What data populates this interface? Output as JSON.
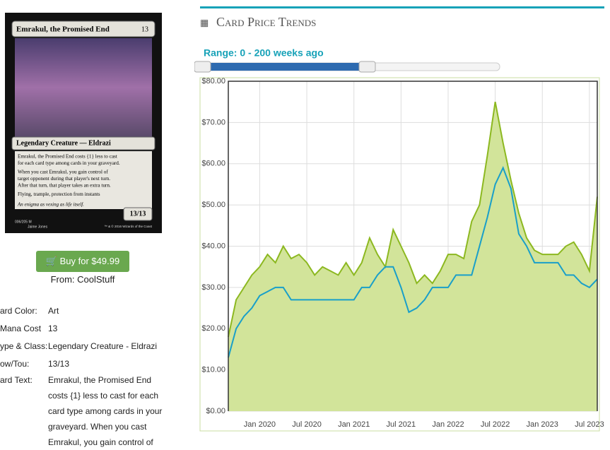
{
  "card": {
    "name": "Emrakul, the Promised End",
    "mana": "13",
    "type_line": "Legendary Creature — Eldrazi",
    "rules": [
      "Emrakul, the Promised End costs {1} less to cast",
      "for each card type among cards in your graveyard.",
      "When you cast Emrakul, you gain control of",
      "target opponent during that player's next turn.",
      "After that turn, that player takes an extra turn.",
      "Flying, trample, protection from instants"
    ],
    "flavor": "An enigma as vexing as life itself.",
    "pt": "13/13",
    "collector": "006/205 M",
    "artist": "Jaime Jones",
    "copyright": "™ & © 2016 Wizards of the Coast"
  },
  "buy": {
    "button": "Buy for $49.99",
    "source": "From: CoolStuff"
  },
  "details": [
    {
      "label": "ard Color:",
      "value": "Art"
    },
    {
      "label": "Mana Cost",
      "value": "13"
    },
    {
      "label": "ype & Class:",
      "value": "Legendary Creature - Eldrazi"
    },
    {
      "label": "ow/Tou:",
      "value": "13/13"
    },
    {
      "label": "ard Text:",
      "value": "Emrakul, the Promised End costs {1} less to cast for each card type among cards in your graveyard. When you cast Emrakul, you gain control of"
    }
  ],
  "chart_data": {
    "type": "line",
    "title": "Card Price Trends",
    "range_label": "Range: 0 - 200 weeks ago",
    "x": [
      "2019-09",
      "2019-10",
      "2019-11",
      "2019-12",
      "2020-01",
      "2020-02",
      "2020-03",
      "2020-04",
      "2020-05",
      "2020-06",
      "2020-07",
      "2020-08",
      "2020-09",
      "2020-10",
      "2020-11",
      "2020-12",
      "2021-01",
      "2021-02",
      "2021-03",
      "2021-04",
      "2021-05",
      "2021-06",
      "2021-07",
      "2021-08",
      "2021-09",
      "2021-10",
      "2021-11",
      "2021-12",
      "2022-01",
      "2022-02",
      "2022-03",
      "2022-04",
      "2022-05",
      "2022-06",
      "2022-07",
      "2022-08",
      "2022-09",
      "2022-10",
      "2022-11",
      "2022-12",
      "2023-01",
      "2023-02",
      "2023-03",
      "2023-04",
      "2023-05",
      "2023-06",
      "2023-07",
      "2023-08"
    ],
    "xlim": [
      "2019-09",
      "2023-08"
    ],
    "xticks": [
      {
        "value": "2020-01",
        "label": "Jan 2020"
      },
      {
        "value": "2020-07",
        "label": "Jul 2020"
      },
      {
        "value": "2021-01",
        "label": "Jan 2021"
      },
      {
        "value": "2021-07",
        "label": "Jul 2021"
      },
      {
        "value": "2022-01",
        "label": "Jan 2022"
      },
      {
        "value": "2022-07",
        "label": "Jul 2022"
      },
      {
        "value": "2023-01",
        "label": "Jan 2023"
      },
      {
        "value": "2023-07",
        "label": "Jul 2023"
      }
    ],
    "ylim": [
      0,
      80
    ],
    "yticks": [
      {
        "value": 0,
        "label": "$0.00"
      },
      {
        "value": 10,
        "label": "$10.00"
      },
      {
        "value": 20,
        "label": "$20.00"
      },
      {
        "value": 30,
        "label": "$30.00"
      },
      {
        "value": 40,
        "label": "$40.00"
      },
      {
        "value": 50,
        "label": "$50.00"
      },
      {
        "value": 60,
        "label": "$60.00"
      },
      {
        "value": 70,
        "label": "$70.00"
      },
      {
        "value": 80,
        "label": "$80.00"
      }
    ],
    "grid": true,
    "series": [
      {
        "color": "#8cb820",
        "fill": "#d2e49a",
        "values": [
          18,
          27,
          30,
          33,
          35,
          38,
          36,
          40,
          37,
          38,
          36,
          33,
          35,
          34,
          33,
          36,
          33,
          36,
          42,
          38,
          35,
          44,
          40,
          36,
          31,
          33,
          31,
          34,
          38,
          38,
          37,
          46,
          50,
          62,
          75,
          65,
          56,
          48,
          42,
          39,
          38,
          38,
          38,
          40,
          41,
          38,
          34,
          52
        ]
      },
      {
        "color": "#199fc9",
        "values": [
          13,
          20,
          23,
          25,
          28,
          29,
          30,
          30,
          27,
          27,
          27,
          27,
          27,
          27,
          27,
          27,
          27,
          30,
          30,
          33,
          35,
          35,
          30,
          24,
          25,
          27,
          30,
          30,
          30,
          33,
          33,
          33,
          40,
          47,
          55,
          59,
          54,
          43,
          40,
          36,
          36,
          36,
          36,
          33,
          33,
          31,
          30,
          32
        ]
      }
    ]
  }
}
